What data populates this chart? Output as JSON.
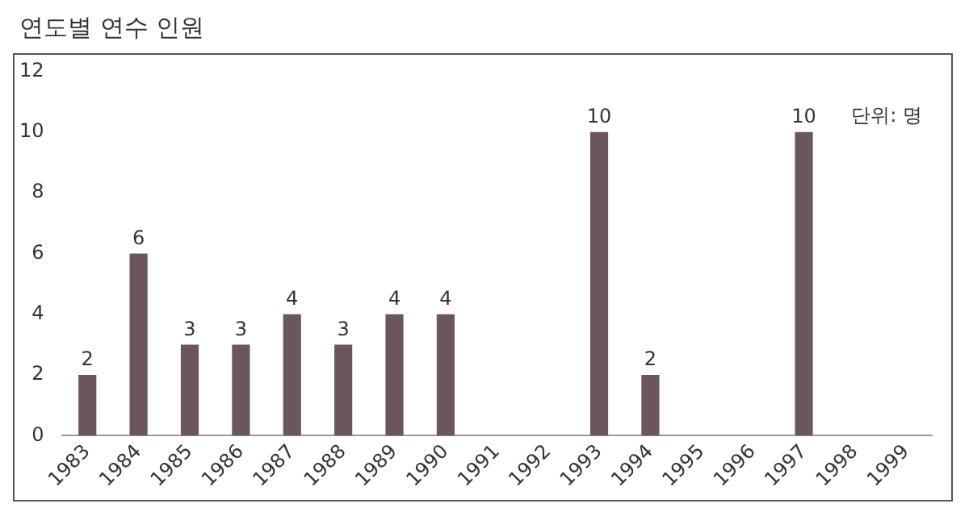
{
  "chart_data": {
    "type": "bar",
    "title": "연도별 연수 인원",
    "categories": [
      "1983",
      "1984",
      "1985",
      "1986",
      "1987",
      "1988",
      "1989",
      "1990",
      "1991",
      "1992",
      "1993",
      "1994",
      "1995",
      "1996",
      "1997",
      "1998",
      "1999"
    ],
    "values": [
      2,
      6,
      3,
      3,
      4,
      3,
      4,
      4,
      null,
      null,
      10,
      2,
      null,
      null,
      10,
      null,
      null
    ],
    "color": "#6b575b",
    "ylim": [
      0,
      12
    ],
    "yticks": [
      0,
      2,
      4,
      6,
      8,
      10,
      12
    ],
    "grid": false,
    "data_labels": true,
    "annotations": [
      "단위: 명"
    ]
  }
}
